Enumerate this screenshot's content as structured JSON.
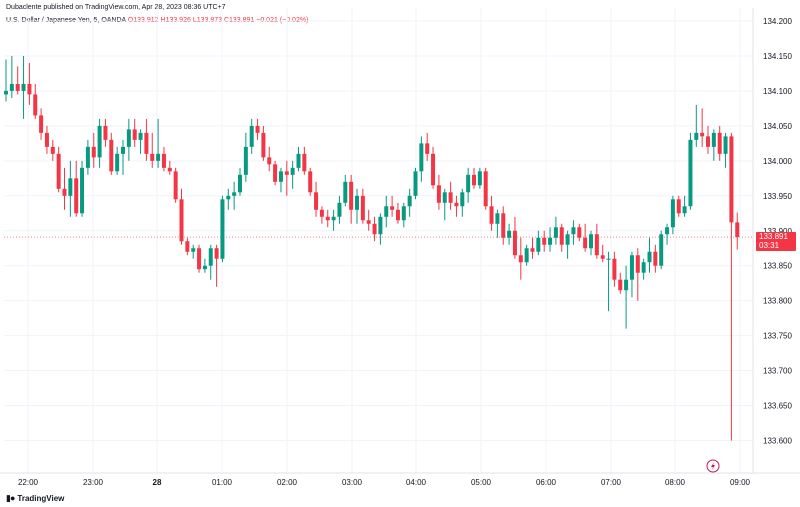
{
  "header": {
    "published_line": "Dubaclente published on TradingView.com, Apr 28, 2023 08:36 UTC+7",
    "symbol": "U.S. Dollar / Japanese Yen, 5, OANDA",
    "ohlc": "O133.912  H133.926  L133.873  C133.891  −0.021 (−0.02%)"
  },
  "footer": {
    "brand": "TradingView"
  },
  "price_badge": {
    "price": "133.891",
    "countdown": "03:31"
  },
  "colors": {
    "up": "#089981",
    "down": "#f23645",
    "grid": "#f0f3fa",
    "axis_text": "#131722",
    "priceline": "#f23645"
  },
  "icons": {
    "flash": "flash-icon",
    "logo": "tradingview-logo-icon"
  },
  "chart_data": {
    "type": "candlestick",
    "interval": "5",
    "title": "U.S. Dollar / Japanese Yen, 5, OANDA",
    "ylim": [
      133.575,
      134.175
    ],
    "y_ticks": [
      "134.200",
      "134.150",
      "134.100",
      "134.050",
      "134.000",
      "133.950",
      "133.900",
      "133.850",
      "133.800",
      "133.750",
      "133.700",
      "133.650",
      "133.600"
    ],
    "x_ticks": [
      "22:00",
      "23:00",
      "28",
      "01:00",
      "02:00",
      "03:00",
      "04:00",
      "05:00",
      "06:00",
      "07:00",
      "08:00",
      "09:00"
    ],
    "last_price": 133.891,
    "candles": [
      [
        134.095,
        134.145,
        134.085,
        134.1
      ],
      [
        134.1,
        134.15,
        134.09,
        134.11
      ],
      [
        134.11,
        134.135,
        134.095,
        134.1
      ],
      [
        134.1,
        134.15,
        134.06,
        134.11
      ],
      [
        134.11,
        134.14,
        134.08,
        134.095
      ],
      [
        134.095,
        134.11,
        134.06,
        134.065
      ],
      [
        134.065,
        134.075,
        134.03,
        134.04
      ],
      [
        134.04,
        134.05,
        134.01,
        134.02
      ],
      [
        134.02,
        134.03,
        134.0,
        134.01
      ],
      [
        134.01,
        134.02,
        133.955,
        133.96
      ],
      [
        133.96,
        133.99,
        133.93,
        133.95
      ],
      [
        133.95,
        134.0,
        133.92,
        133.975
      ],
      [
        133.975,
        134.0,
        133.92,
        133.925
      ],
      [
        133.925,
        134.0,
        133.92,
        133.99
      ],
      [
        133.99,
        134.03,
        133.98,
        134.02
      ],
      [
        134.02,
        134.04,
        133.99,
        134.005
      ],
      [
        134.005,
        134.06,
        133.99,
        134.05
      ],
      [
        134.05,
        134.06,
        134.02,
        134.03
      ],
      [
        134.03,
        134.04,
        133.98,
        133.985
      ],
      [
        133.985,
        134.02,
        133.98,
        134.01
      ],
      [
        134.01,
        134.03,
        133.98,
        134.02
      ],
      [
        134.02,
        134.06,
        134.0,
        134.045
      ],
      [
        134.045,
        134.06,
        134.02,
        134.03
      ],
      [
        134.03,
        134.045,
        134.01,
        134.04
      ],
      [
        134.04,
        134.06,
        134.0,
        134.01
      ],
      [
        134.01,
        134.04,
        133.99,
        134.0
      ],
      [
        134.0,
        134.06,
        133.99,
        134.01
      ],
      [
        134.01,
        134.02,
        133.985,
        133.99
      ],
      [
        133.99,
        134.0,
        133.98,
        133.985
      ],
      [
        133.985,
        133.99,
        133.94,
        133.945
      ],
      [
        133.945,
        133.96,
        133.88,
        133.885
      ],
      [
        133.885,
        133.89,
        133.865,
        133.87
      ],
      [
        133.87,
        133.88,
        133.86,
        133.875
      ],
      [
        133.875,
        133.88,
        133.84,
        133.845
      ],
      [
        133.845,
        133.86,
        133.84,
        133.85
      ],
      [
        133.85,
        133.88,
        133.83,
        133.875
      ],
      [
        133.875,
        133.88,
        133.82,
        133.86
      ],
      [
        133.86,
        133.95,
        133.855,
        133.945
      ],
      [
        133.945,
        133.96,
        133.93,
        133.95
      ],
      [
        133.95,
        133.97,
        133.93,
        133.955
      ],
      [
        133.955,
        133.99,
        133.95,
        133.98
      ],
      [
        133.98,
        134.04,
        133.97,
        134.02
      ],
      [
        134.02,
        134.06,
        134.01,
        134.05
      ],
      [
        134.05,
        134.06,
        134.03,
        134.04
      ],
      [
        134.04,
        134.05,
        134.0,
        134.005
      ],
      [
        134.005,
        134.02,
        133.985,
        133.995
      ],
      [
        133.995,
        134.0,
        133.965,
        133.97
      ],
      [
        133.97,
        133.99,
        133.955,
        133.985
      ],
      [
        133.985,
        134.0,
        133.95,
        133.98
      ],
      [
        133.98,
        134.0,
        133.96,
        133.99
      ],
      [
        133.99,
        134.02,
        133.985,
        134.01
      ],
      [
        134.01,
        134.02,
        133.98,
        133.985
      ],
      [
        133.985,
        133.99,
        133.95,
        133.955
      ],
      [
        133.955,
        133.97,
        133.92,
        133.93
      ],
      [
        133.93,
        133.935,
        133.91,
        133.92
      ],
      [
        133.92,
        133.93,
        133.905,
        133.915
      ],
      [
        133.915,
        133.93,
        133.9,
        133.92
      ],
      [
        133.92,
        133.95,
        133.91,
        133.94
      ],
      [
        133.94,
        133.98,
        133.935,
        133.97
      ],
      [
        133.97,
        133.98,
        133.91,
        133.93
      ],
      [
        133.93,
        133.96,
        133.91,
        133.95
      ],
      [
        133.95,
        133.96,
        133.91,
        133.915
      ],
      [
        133.915,
        133.93,
        133.9,
        133.91
      ],
      [
        133.91,
        133.92,
        133.885,
        133.895
      ],
      [
        133.895,
        133.925,
        133.88,
        133.92
      ],
      [
        133.92,
        133.95,
        133.905,
        133.935
      ],
      [
        133.935,
        133.95,
        133.92,
        133.93
      ],
      [
        133.93,
        133.94,
        133.91,
        133.915
      ],
      [
        133.915,
        133.94,
        133.905,
        133.935
      ],
      [
        133.935,
        133.96,
        133.92,
        133.95
      ],
      [
        133.95,
        133.99,
        133.945,
        133.985
      ],
      [
        133.985,
        134.035,
        133.97,
        134.025
      ],
      [
        134.025,
        134.04,
        134.0,
        134.01
      ],
      [
        134.01,
        134.02,
        133.96,
        133.965
      ],
      [
        133.965,
        133.98,
        133.93,
        133.94
      ],
      [
        133.94,
        133.96,
        133.915,
        133.955
      ],
      [
        133.955,
        133.97,
        133.93,
        133.94
      ],
      [
        133.94,
        133.95,
        133.92,
        133.935
      ],
      [
        133.935,
        133.96,
        133.92,
        133.955
      ],
      [
        133.955,
        133.99,
        133.94,
        133.98
      ],
      [
        133.98,
        133.99,
        133.96,
        133.965
      ],
      [
        133.965,
        133.99,
        133.96,
        133.985
      ],
      [
        133.985,
        133.99,
        133.93,
        133.935
      ],
      [
        133.935,
        133.95,
        133.9,
        133.91
      ],
      [
        133.91,
        133.93,
        133.89,
        133.925
      ],
      [
        133.925,
        133.935,
        133.88,
        133.89
      ],
      [
        133.89,
        133.91,
        133.88,
        133.9
      ],
      [
        133.9,
        133.92,
        133.86,
        133.865
      ],
      [
        133.865,
        133.89,
        133.83,
        133.855
      ],
      [
        133.855,
        133.88,
        133.85,
        133.875
      ],
      [
        133.875,
        133.89,
        133.86,
        133.87
      ],
      [
        133.87,
        133.9,
        133.865,
        133.89
      ],
      [
        133.89,
        133.9,
        133.87,
        133.88
      ],
      [
        133.88,
        133.905,
        133.87,
        133.89
      ],
      [
        133.89,
        133.92,
        133.88,
        133.905
      ],
      [
        133.905,
        133.91,
        133.87,
        133.88
      ],
      [
        133.88,
        133.9,
        133.86,
        133.895
      ],
      [
        133.895,
        133.915,
        133.88,
        133.905
      ],
      [
        133.905,
        133.91,
        133.885,
        133.89
      ],
      [
        133.89,
        133.91,
        133.87,
        133.875
      ],
      [
        133.875,
        133.9,
        133.865,
        133.895
      ],
      [
        133.895,
        133.91,
        133.86,
        133.865
      ],
      [
        133.865,
        133.88,
        133.855,
        133.86
      ],
      [
        133.86,
        133.87,
        133.785,
        133.86
      ],
      [
        133.86,
        133.87,
        133.82,
        133.83
      ],
      [
        133.83,
        133.84,
        133.81,
        133.815
      ],
      [
        133.815,
        133.85,
        133.76,
        133.83
      ],
      [
        133.83,
        133.87,
        133.805,
        133.865
      ],
      [
        133.865,
        133.875,
        133.8,
        133.84
      ],
      [
        133.84,
        133.86,
        133.83,
        133.855
      ],
      [
        133.855,
        133.89,
        133.84,
        133.87
      ],
      [
        133.87,
        133.88,
        133.84,
        133.85
      ],
      [
        133.85,
        133.9,
        133.845,
        133.895
      ],
      [
        133.895,
        133.91,
        133.88,
        133.905
      ],
      [
        133.905,
        133.95,
        133.895,
        133.945
      ],
      [
        133.945,
        133.95,
        133.92,
        133.925
      ],
      [
        133.925,
        133.95,
        133.92,
        133.935
      ],
      [
        133.935,
        134.04,
        133.93,
        134.03
      ],
      [
        134.03,
        134.08,
        134.02,
        134.04
      ],
      [
        134.04,
        134.075,
        134.02,
        134.035
      ],
      [
        134.035,
        134.05,
        134.01,
        134.02
      ],
      [
        134.02,
        134.045,
        134.0,
        134.04
      ],
      [
        134.04,
        134.05,
        134.0,
        134.01
      ],
      [
        134.01,
        134.04,
        133.99,
        134.035
      ],
      [
        134.035,
        134.04,
        133.6,
        133.912
      ],
      [
        133.912,
        133.926,
        133.873,
        133.891
      ]
    ]
  }
}
